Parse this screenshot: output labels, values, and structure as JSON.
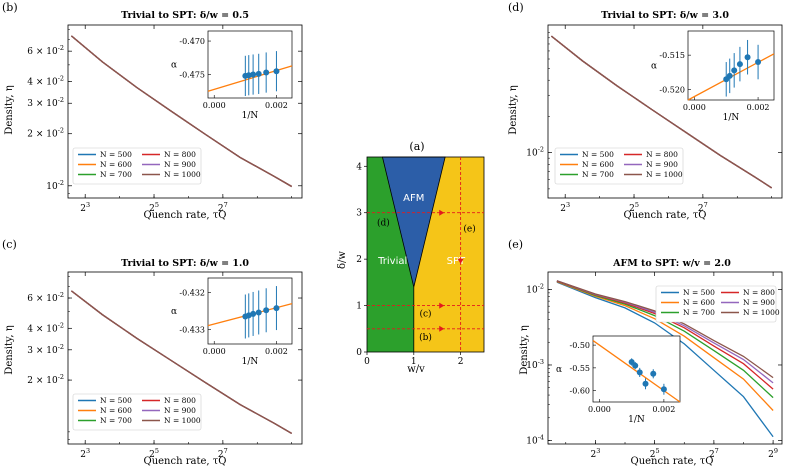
{
  "colors": {
    "series": [
      "#1f77b4",
      "#ff7f0e",
      "#2ca02c",
      "#d62728",
      "#9467bd",
      "#8c564b"
    ],
    "fit_line": "#ff7f0e",
    "inset_points": "#1f77b4",
    "trivial": "#2ca02c",
    "afm": "#2c5ea8",
    "spt": "#f5c518",
    "quench_paths": "#e31a1c"
  },
  "legend_entries": [
    "N = 500",
    "N = 600",
    "N = 700",
    "N = 800",
    "N = 900",
    "N = 1000"
  ],
  "chart_data": [
    {
      "id": "b",
      "tag": "(b)",
      "type": "line",
      "title": "Trivial to SPT: δ/w = 0.5",
      "xlabel": "Quench rate, τQ",
      "ylabel": "Density, η",
      "xscale": "log2",
      "yscale": "log10",
      "xlim": [
        2.5,
        9.3
      ],
      "ylim": [
        0.0085,
        0.085
      ],
      "xticks": [
        {
          "value": 3,
          "label": "2^3"
        },
        {
          "value": 5,
          "label": "2^5"
        },
        {
          "value": 7,
          "label": "2^7"
        }
      ],
      "yticks": [
        {
          "value": 0.01,
          "label": "10^-2"
        },
        {
          "value": 0.02,
          "label": "2 × 10^-2"
        },
        {
          "value": 0.03,
          "label": "3 × 10^-2"
        },
        {
          "value": 0.04,
          "label": "4 × 10^-2"
        },
        {
          "value": 0.06,
          "label": "6 × 10^-2"
        }
      ],
      "x": [
        2.6,
        3.5,
        4.5,
        5.5,
        6.5,
        7.5,
        8.5,
        9.0
      ],
      "series": [
        {
          "name": "N = 500",
          "values": [
            0.0735,
            0.052,
            0.037,
            0.027,
            0.0198,
            0.0146,
            0.0113,
            0.0099
          ]
        },
        {
          "name": "N = 600",
          "values": [
            0.0735,
            0.052,
            0.037,
            0.027,
            0.0198,
            0.0146,
            0.0113,
            0.0099
          ]
        },
        {
          "name": "N = 700",
          "values": [
            0.0735,
            0.052,
            0.037,
            0.027,
            0.0198,
            0.0146,
            0.0113,
            0.0099
          ]
        },
        {
          "name": "N = 800",
          "values": [
            0.0735,
            0.052,
            0.037,
            0.027,
            0.0198,
            0.0146,
            0.0113,
            0.0099
          ]
        },
        {
          "name": "N = 900",
          "values": [
            0.0735,
            0.052,
            0.037,
            0.027,
            0.0198,
            0.0146,
            0.0113,
            0.0099
          ]
        },
        {
          "name": "N = 1000",
          "values": [
            0.0735,
            0.052,
            0.037,
            0.027,
            0.0198,
            0.0146,
            0.0113,
            0.0099
          ]
        }
      ],
      "legend": "bottom-left",
      "inset": {
        "xlabel": "1/N",
        "ylabel": "α",
        "xlim": [
          -0.0002,
          0.0025
        ],
        "ylim": [
          -0.4785,
          -0.4685
        ],
        "xticks": [
          {
            "value": 0.0,
            "label": "0.000"
          },
          {
            "value": 0.002,
            "label": "0.002"
          }
        ],
        "yticks": [
          {
            "value": -0.475,
            "label": "-0.475"
          },
          {
            "value": -0.47,
            "label": "-0.470"
          }
        ],
        "points": [
          {
            "x": 0.001,
            "y": -0.4752,
            "err": 0.003
          },
          {
            "x": 0.00111,
            "y": -0.4751,
            "err": 0.003
          },
          {
            "x": 0.00125,
            "y": -0.475,
            "err": 0.003
          },
          {
            "x": 0.00143,
            "y": -0.4749,
            "err": 0.003
          },
          {
            "x": 0.00167,
            "y": -0.4747,
            "err": 0.003
          },
          {
            "x": 0.002,
            "y": -0.4745,
            "err": 0.003
          }
        ],
        "fit": {
          "x": [
            -0.0002,
            0.0025
          ],
          "y": [
            -0.4775,
            -0.4737
          ]
        }
      }
    },
    {
      "id": "c",
      "tag": "(c)",
      "type": "line",
      "title": "Trivial to SPT: δ/w = 1.0",
      "xlabel": "Quench rate, τQ",
      "ylabel": "Density, η",
      "xscale": "log2",
      "yscale": "log10",
      "xlim": [
        2.5,
        9.3
      ],
      "ylim": [
        0.0085,
        0.085
      ],
      "xticks": [
        {
          "value": 3,
          "label": "2^3"
        },
        {
          "value": 5,
          "label": "2^5"
        },
        {
          "value": 7,
          "label": "2^7"
        }
      ],
      "yticks": [
        {
          "value": 0.02,
          "label": "2 × 10^-2"
        },
        {
          "value": 0.03,
          "label": "3 × 10^-2"
        },
        {
          "value": 0.04,
          "label": "4 × 10^-2"
        },
        {
          "value": 0.06,
          "label": "6 × 10^-2"
        }
      ],
      "x": [
        2.6,
        3.5,
        4.5,
        5.5,
        6.5,
        7.5,
        8.5,
        9.0
      ],
      "series": [
        {
          "name": "N = 500",
          "values": [
            0.066,
            0.048,
            0.035,
            0.026,
            0.0193,
            0.0144,
            0.0112,
            0.0098
          ]
        },
        {
          "name": "N = 600",
          "values": [
            0.066,
            0.048,
            0.035,
            0.026,
            0.0193,
            0.0144,
            0.0112,
            0.0098
          ]
        },
        {
          "name": "N = 700",
          "values": [
            0.066,
            0.048,
            0.035,
            0.026,
            0.0193,
            0.0144,
            0.0112,
            0.0098
          ]
        },
        {
          "name": "N = 800",
          "values": [
            0.066,
            0.048,
            0.035,
            0.026,
            0.0193,
            0.0144,
            0.0112,
            0.0098
          ]
        },
        {
          "name": "N = 900",
          "values": [
            0.066,
            0.048,
            0.035,
            0.026,
            0.0193,
            0.0144,
            0.0112,
            0.0098
          ]
        },
        {
          "name": "N = 1000",
          "values": [
            0.066,
            0.048,
            0.035,
            0.026,
            0.0193,
            0.0144,
            0.0112,
            0.0098
          ]
        }
      ],
      "legend": "bottom-left",
      "inset": {
        "xlabel": "1/N",
        "ylabel": "α",
        "xlim": [
          -0.0002,
          0.0025
        ],
        "ylim": [
          -0.4334,
          -0.4316
        ],
        "xticks": [
          {
            "value": 0.0,
            "label": "0.000"
          },
          {
            "value": 0.002,
            "label": "0.002"
          }
        ],
        "yticks": [
          {
            "value": -0.433,
            "label": "-0.433"
          },
          {
            "value": -0.432,
            "label": "-0.432"
          }
        ],
        "points": [
          {
            "x": 0.001,
            "y": -0.43265,
            "err": 0.0006
          },
          {
            "x": 0.00111,
            "y": -0.43262,
            "err": 0.0006
          },
          {
            "x": 0.00125,
            "y": -0.43258,
            "err": 0.0006
          },
          {
            "x": 0.00143,
            "y": -0.43254,
            "err": 0.0006
          },
          {
            "x": 0.00167,
            "y": -0.43248,
            "err": 0.0006
          },
          {
            "x": 0.002,
            "y": -0.43242,
            "err": 0.0006
          }
        ],
        "fit": {
          "x": [
            -0.0002,
            0.0025
          ],
          "y": [
            -0.4329,
            -0.4323
          ]
        }
      }
    },
    {
      "id": "d",
      "tag": "(d)",
      "type": "line",
      "title": "Trivial to SPT: δ/w = 3.0",
      "xlabel": "Quench rate, τQ",
      "ylabel": "Density, η",
      "xscale": "log2",
      "yscale": "log10",
      "xlim": [
        2.5,
        9.3
      ],
      "ylim": [
        0.0042,
        0.115
      ],
      "xticks": [
        {
          "value": 3,
          "label": "2^3"
        },
        {
          "value": 5,
          "label": "2^5"
        },
        {
          "value": 7,
          "label": "2^7"
        }
      ],
      "yticks": [
        {
          "value": 0.01,
          "label": "10^-2"
        }
      ],
      "x": [
        2.6,
        3.5,
        4.5,
        5.5,
        6.5,
        7.5,
        8.5,
        9.0
      ],
      "series": [
        {
          "name": "N = 500",
          "values": [
            0.093,
            0.058,
            0.036,
            0.023,
            0.0148,
            0.0095,
            0.0063,
            0.0051
          ]
        },
        {
          "name": "N = 600",
          "values": [
            0.093,
            0.058,
            0.036,
            0.023,
            0.0148,
            0.0095,
            0.0063,
            0.0051
          ]
        },
        {
          "name": "N = 700",
          "values": [
            0.093,
            0.058,
            0.036,
            0.023,
            0.0148,
            0.0095,
            0.0063,
            0.0051
          ]
        },
        {
          "name": "N = 800",
          "values": [
            0.093,
            0.058,
            0.036,
            0.023,
            0.0148,
            0.0095,
            0.0063,
            0.0051
          ]
        },
        {
          "name": "N = 900",
          "values": [
            0.093,
            0.058,
            0.036,
            0.023,
            0.0148,
            0.0095,
            0.0063,
            0.0051
          ]
        },
        {
          "name": "N = 1000",
          "values": [
            0.093,
            0.058,
            0.036,
            0.023,
            0.0148,
            0.0095,
            0.0063,
            0.0051
          ]
        }
      ],
      "legend": "bottom-left",
      "inset": {
        "xlabel": "1/N",
        "ylabel": "α",
        "xlim": [
          -0.0002,
          0.0025
        ],
        "ylim": [
          -0.5215,
          -0.5115
        ],
        "xticks": [
          {
            "value": 0.0,
            "label": "0.000"
          },
          {
            "value": 0.002,
            "label": "0.002"
          }
        ],
        "yticks": [
          {
            "value": -0.52,
            "label": "-0.520"
          },
          {
            "value": -0.515,
            "label": "-0.515"
          }
        ],
        "points": [
          {
            "x": 0.001,
            "y": -0.5185,
            "err": 0.0025
          },
          {
            "x": 0.00111,
            "y": -0.518,
            "err": 0.0025
          },
          {
            "x": 0.00125,
            "y": -0.5172,
            "err": 0.0025
          },
          {
            "x": 0.00143,
            "y": -0.5163,
            "err": 0.0025
          },
          {
            "x": 0.00167,
            "y": -0.5153,
            "err": 0.0025
          },
          {
            "x": 0.002,
            "y": -0.516,
            "err": 0.0025
          }
        ],
        "fit": {
          "x": [
            -0.0002,
            0.0025
          ],
          "y": [
            -0.5215,
            -0.5148
          ]
        }
      }
    },
    {
      "id": "e",
      "tag": "(e)",
      "type": "line",
      "title": "AFM to SPT: w/v = 2.0",
      "xlabel": "Quench rate, τQ",
      "ylabel": "Density, η",
      "xscale": "log2",
      "yscale": "log10",
      "xlim": [
        1.4,
        9.3
      ],
      "ylim": [
        9e-05,
        0.017
      ],
      "xticks": [
        {
          "value": 3,
          "label": "2^3"
        },
        {
          "value": 5,
          "label": "2^5"
        },
        {
          "value": 7,
          "label": "2^7"
        },
        {
          "value": 9,
          "label": "2^9"
        }
      ],
      "yticks": [
        {
          "value": 0.0001,
          "label": "10^-4"
        },
        {
          "value": 0.001,
          "label": "10^-3"
        },
        {
          "value": 0.01,
          "label": "10^-2"
        }
      ],
      "x": [
        1.7,
        3,
        4,
        5,
        6,
        7,
        8,
        9
      ],
      "series": [
        {
          "name": "N = 500",
          "values": [
            0.0125,
            0.0078,
            0.0057,
            0.0036,
            0.0019,
            0.00085,
            0.00038,
            0.000112
          ]
        },
        {
          "name": "N = 600",
          "values": [
            0.0127,
            0.0081,
            0.0061,
            0.0041,
            0.0024,
            0.00125,
            0.00065,
            0.00025
          ]
        },
        {
          "name": "N = 700",
          "values": [
            0.0128,
            0.0083,
            0.0064,
            0.0045,
            0.0028,
            0.00155,
            0.00085,
            0.00037
          ]
        },
        {
          "name": "N = 800",
          "values": [
            0.0129,
            0.0085,
            0.0066,
            0.0048,
            0.0031,
            0.00178,
            0.00104,
            0.00048
          ]
        },
        {
          "name": "N = 900",
          "values": [
            0.013,
            0.0086,
            0.0068,
            0.005,
            0.0033,
            0.00196,
            0.00118,
            0.00058
          ]
        },
        {
          "name": "N = 1000",
          "values": [
            0.013,
            0.0087,
            0.0069,
            0.0052,
            0.0035,
            0.0021,
            0.0013,
            0.00068
          ]
        }
      ],
      "legend": "top-right",
      "inset": {
        "xlabel": "1/N",
        "ylabel": "α",
        "xlim": [
          -0.0002,
          0.0025
        ],
        "ylim": [
          -0.625,
          -0.48
        ],
        "xticks": [
          {
            "value": 0.0,
            "label": "0.000"
          },
          {
            "value": 0.002,
            "label": "0.002"
          }
        ],
        "yticks": [
          {
            "value": -0.6,
            "label": "-0.60"
          },
          {
            "value": -0.55,
            "label": "-0.55"
          },
          {
            "value": -0.5,
            "label": "-0.50"
          }
        ],
        "points": [
          {
            "x": 0.001,
            "y": -0.537,
            "err": 0.008
          },
          {
            "x": 0.00111,
            "y": -0.545,
            "err": 0.008
          },
          {
            "x": 0.00125,
            "y": -0.56,
            "err": 0.01
          },
          {
            "x": 0.00143,
            "y": -0.585,
            "err": 0.012
          },
          {
            "x": 0.00167,
            "y": -0.563,
            "err": 0.01
          },
          {
            "x": 0.002,
            "y": -0.597,
            "err": 0.012
          }
        ],
        "fit": {
          "x": [
            -0.0002,
            0.0025
          ],
          "y": [
            -0.49,
            -0.625
          ]
        }
      }
    },
    {
      "id": "a",
      "tag": "(a)",
      "type": "phase-diagram",
      "xlabel": "w/v",
      "ylabel": "δ/w",
      "xlim": [
        0,
        2.5
      ],
      "ylim": [
        0,
        4.2
      ],
      "xticks": [
        0,
        1,
        2
      ],
      "yticks": [
        0,
        1,
        2,
        3,
        4
      ],
      "regions": [
        {
          "name": "Trivial",
          "label": "Trivial"
        },
        {
          "name": "AFM",
          "label": "AFM"
        },
        {
          "name": "SPT",
          "label": "SPT"
        }
      ],
      "afm_boundary": {
        "apex": [
          1,
          1.4
        ],
        "top_left": [
          0.33,
          4.2
        ],
        "top_right": [
          1.67,
          4.2
        ]
      },
      "quench_paths": [
        {
          "label": "(b)",
          "type": "horizontal",
          "delta_over_w": 0.5,
          "from": 0,
          "to": 2.5
        },
        {
          "label": "(c)",
          "type": "horizontal",
          "delta_over_w": 1.0,
          "from": 0,
          "to": 2.5
        },
        {
          "label": "(d)",
          "type": "horizontal",
          "delta_over_w": 3.0,
          "from": 0,
          "to": 2.5
        },
        {
          "label": "(e)",
          "type": "vertical",
          "w_over_v": 2.0,
          "from": 4.2,
          "to": 0
        }
      ]
    }
  ]
}
